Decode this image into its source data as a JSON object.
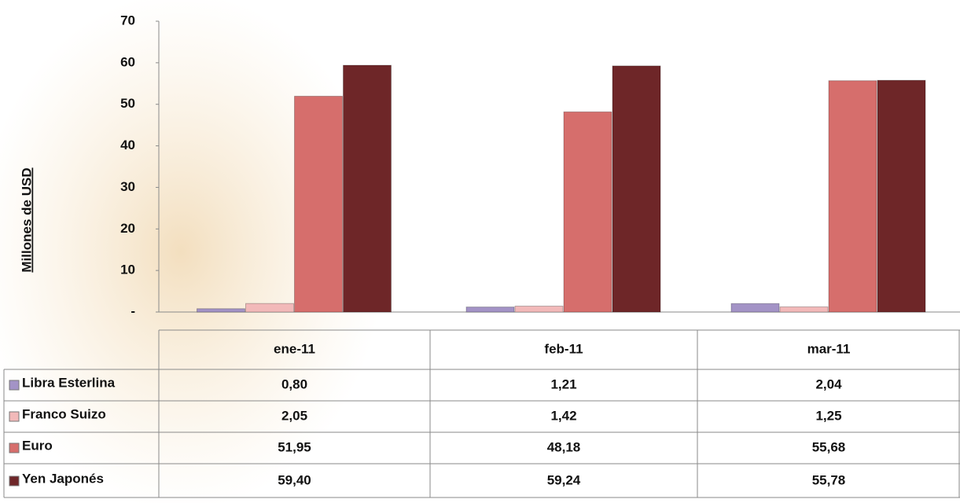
{
  "chart_data": {
    "type": "bar",
    "y_axis_label": "Millones de USD",
    "categories": [
      "ene-11",
      "feb-11",
      "mar-11"
    ],
    "series": [
      {
        "name": "Libra Esterlina",
        "color": "#a393c6",
        "values": [
          0.8,
          1.21,
          2.04
        ],
        "value_labels": [
          "0,80",
          "1,21",
          "2,04"
        ]
      },
      {
        "name": "Franco Suizo",
        "color": "#f2b9b9",
        "values": [
          2.05,
          1.42,
          1.25
        ],
        "value_labels": [
          "2,05",
          "1,42",
          "1,25"
        ]
      },
      {
        "name": "Euro",
        "color": "#d66e6c",
        "values": [
          51.95,
          48.18,
          55.68
        ],
        "value_labels": [
          "51,95",
          "48,18",
          "55,68"
        ]
      },
      {
        "name": "Yen Japonés",
        "color": "#6e2628",
        "values": [
          59.4,
          59.24,
          55.78
        ],
        "value_labels": [
          "59,40",
          "59,24",
          "55,78"
        ]
      }
    ],
    "ylim": [
      0,
      70
    ],
    "yticks": [
      {
        "value": 0,
        "label": "-"
      },
      10,
      20,
      30,
      40,
      50,
      60,
      70
    ],
    "grid": false
  }
}
